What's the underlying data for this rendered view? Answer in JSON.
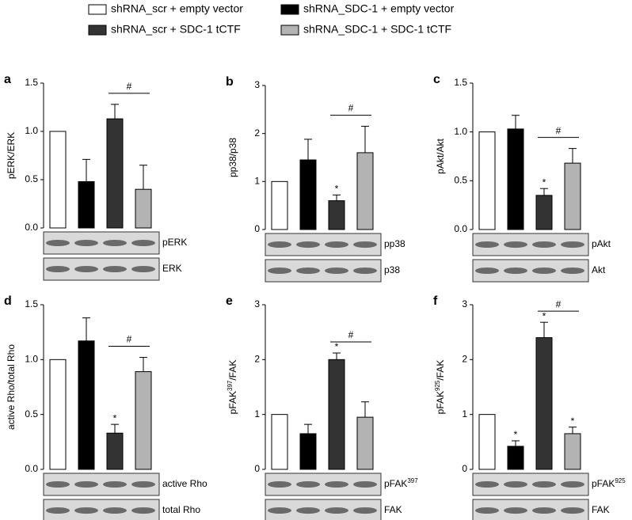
{
  "legend": [
    {
      "name": "shRNA_scr + empty vector",
      "color": "#ffffff"
    },
    {
      "name": "shRNA_SDC-1 + empty vector",
      "color": "#000000"
    },
    {
      "name": "shRNA_scr + SDC-1 tCTF",
      "color": "#333333"
    },
    {
      "name": "shRNA_SDC-1 + SDC-1 tCTF",
      "color": "#b3b3b3"
    }
  ],
  "chart_data": [
    {
      "type": "bar",
      "panel": "a",
      "ylabel": [
        {
          "text": "pERK/ERK"
        }
      ],
      "ylim": [
        0,
        1.5
      ],
      "yticks": [
        {
          "value": 0,
          "label": "0.0"
        },
        {
          "value": 0.5,
          "label": "0.5"
        },
        {
          "value": 1,
          "label": "1.0"
        },
        {
          "value": 1.5,
          "label": "1.5"
        }
      ],
      "values": [
        1.0,
        0.48,
        1.13,
        0.4
      ],
      "errors": [
        null,
        0.23,
        0.15,
        0.25
      ],
      "significance": [],
      "bracket": {
        "from": 2,
        "to": 3,
        "label": "#"
      },
      "blots": [
        [
          {
            "text": "pERK"
          }
        ],
        [
          {
            "text": "ERK"
          }
        ]
      ]
    },
    {
      "type": "bar",
      "panel": "b",
      "ylabel": [
        {
          "text": "pp38/p38"
        }
      ],
      "ylim": [
        0,
        3
      ],
      "yticks": [
        0,
        1,
        2,
        3
      ],
      "values": [
        1.0,
        1.45,
        0.6,
        1.6
      ],
      "errors": [
        null,
        0.43,
        0.12,
        0.55
      ],
      "significance": [
        {
          "bar": 2,
          "label": "*"
        }
      ],
      "bracket": {
        "from": 2,
        "to": 3,
        "label": "#"
      },
      "blots": [
        [
          {
            "text": "pp38"
          }
        ],
        [
          {
            "text": "p38"
          }
        ]
      ]
    },
    {
      "type": "bar",
      "panel": "c",
      "ylabel": [
        {
          "text": "pAkt/Akt"
        }
      ],
      "ylim": [
        0,
        1.5
      ],
      "yticks": [
        {
          "value": 0,
          "label": "0.0"
        },
        {
          "value": 0.5,
          "label": "0.5"
        },
        {
          "value": 1,
          "label": "1.0"
        },
        {
          "value": 1.5,
          "label": "1.5"
        }
      ],
      "values": [
        1.0,
        1.03,
        0.35,
        0.68
      ],
      "errors": [
        null,
        0.14,
        0.07,
        0.15
      ],
      "significance": [
        {
          "bar": 2,
          "label": "*"
        }
      ],
      "bracket": {
        "from": 2,
        "to": 3,
        "label": "#"
      },
      "blots": [
        [
          {
            "text": "pAkt"
          }
        ],
        [
          {
            "text": "Akt"
          }
        ]
      ]
    },
    {
      "type": "bar",
      "panel": "d",
      "ylabel": [
        {
          "text": "active Rho/total Rho"
        }
      ],
      "ylim": [
        0,
        1.5
      ],
      "yticks": [
        {
          "value": 0,
          "label": "0.0"
        },
        {
          "value": 0.5,
          "label": "0.5"
        },
        {
          "value": 1,
          "label": "1.0"
        },
        {
          "value": 1.5,
          "label": "1.5"
        }
      ],
      "values": [
        1.0,
        1.17,
        0.33,
        0.89
      ],
      "errors": [
        null,
        0.21,
        0.08,
        0.13
      ],
      "significance": [
        {
          "bar": 2,
          "label": "*"
        }
      ],
      "bracket": {
        "from": 2,
        "to": 3,
        "label": "#"
      },
      "blots": [
        [
          {
            "text": "active Rho"
          }
        ],
        [
          {
            "text": "total Rho"
          }
        ]
      ]
    },
    {
      "type": "bar",
      "panel": "e",
      "ylabel": [
        {
          "text": "pFAK"
        },
        {
          "text": "397",
          "sup": true
        },
        {
          "text": "/FAK"
        }
      ],
      "ylim": [
        0,
        3
      ],
      "yticks": [
        0,
        1,
        2,
        3
      ],
      "values": [
        1.0,
        0.65,
        2.0,
        0.95
      ],
      "errors": [
        null,
        0.17,
        0.12,
        0.28
      ],
      "significance": [
        {
          "bar": 2,
          "label": "*"
        }
      ],
      "bracket": {
        "from": 2,
        "to": 3,
        "label": "#"
      },
      "blots": [
        [
          {
            "text": "pFAK"
          },
          {
            "text": "397",
            "sup": true
          }
        ],
        [
          {
            "text": "FAK"
          }
        ]
      ]
    },
    {
      "type": "bar",
      "panel": "f",
      "ylabel": [
        {
          "text": "pFAK"
        },
        {
          "text": "925",
          "sup": true
        },
        {
          "text": "/FAK"
        }
      ],
      "ylim": [
        0,
        3
      ],
      "yticks": [
        0,
        1,
        2,
        3
      ],
      "values": [
        1.0,
        0.42,
        2.4,
        0.65
      ],
      "errors": [
        null,
        0.1,
        0.28,
        0.12
      ],
      "significance": [
        {
          "bar": 1,
          "label": "*"
        },
        {
          "bar": 2,
          "label": "*"
        },
        {
          "bar": 3,
          "label": "*"
        }
      ],
      "bracket": {
        "from": 2,
        "to": 3,
        "label": "#"
      },
      "blots": [
        [
          {
            "text": "pFAK"
          },
          {
            "text": "925",
            "sup": true
          }
        ],
        [
          {
            "text": "FAK"
          }
        ]
      ]
    }
  ]
}
